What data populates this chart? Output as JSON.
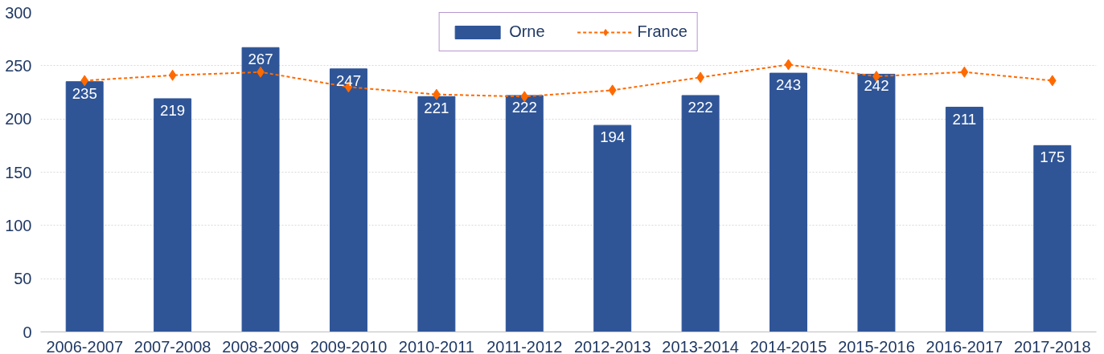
{
  "chart_data": {
    "type": "bar",
    "categories": [
      "2006-2007",
      "2007-2008",
      "2008-2009",
      "2009-2010",
      "2010-2011",
      "2011-2012",
      "2012-2013",
      "2013-2014",
      "2014-2015",
      "2015-2016",
      "2016-2017",
      "2017-2018"
    ],
    "series": [
      {
        "name": "Orne",
        "color": "#2f5597",
        "values": [
          235,
          219,
          267,
          247,
          221,
          222,
          194,
          222,
          243,
          242,
          211,
          175
        ],
        "value_labels": [
          "235",
          "219",
          "267",
          "247",
          "221",
          "222",
          "194",
          "222",
          "243",
          "242",
          "211",
          "175"
        ]
      },
      {
        "name": "France",
        "type": "line",
        "color": "#ff6a00",
        "marker": "diamond",
        "line_style": "dashed",
        "values": [
          236,
          241,
          244,
          230,
          223,
          221,
          227,
          239,
          251,
          240,
          244,
          236
        ]
      }
    ],
    "ylim": [
      0,
      300
    ],
    "yticks": [
      0,
      50,
      100,
      150,
      200,
      250,
      300
    ],
    "grid": "y",
    "legend": "top"
  }
}
